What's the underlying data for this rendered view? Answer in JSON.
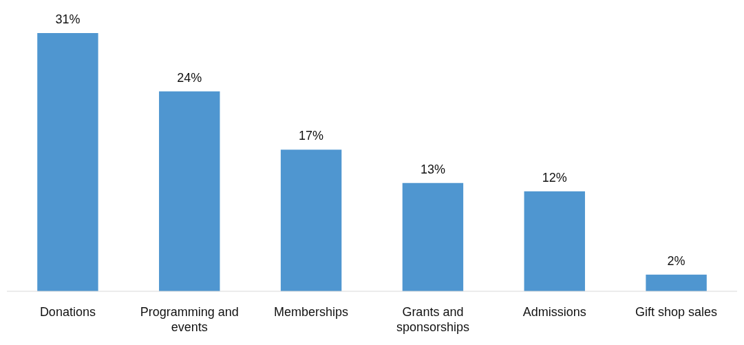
{
  "chart_data": {
    "type": "bar",
    "categories": [
      "Donations",
      "Programming and events",
      "Memberships",
      "Grants and sponsorships",
      "Admissions",
      "Gift shop sales"
    ],
    "values": [
      31,
      24,
      17,
      13,
      12,
      2
    ],
    "value_labels": [
      "31%",
      "24%",
      "17%",
      "13%",
      "12%",
      "2%"
    ],
    "color": "#4f96d0"
  }
}
